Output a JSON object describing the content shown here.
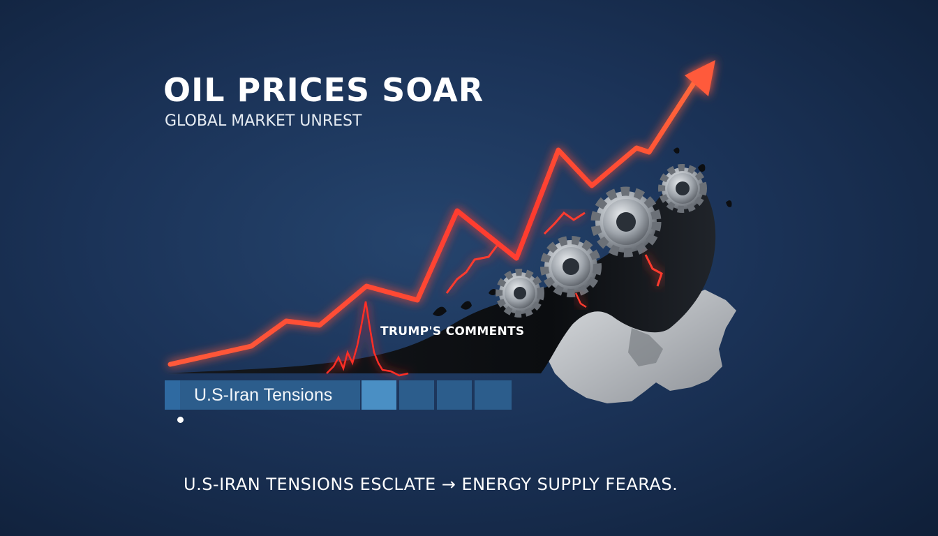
{
  "headline": "OIL PRICES SOAR",
  "subheadline": "GLOBAL MARKET UNREST",
  "annotation": "TRUMP'S COMMENTS",
  "tension_bar_label": "U.S-Iran Tensions",
  "footer": "U.S-IRAN TENSIONS ESCLATE → ENERGY SUPPLY FEARAS.",
  "icons": [
    "trend-arrow",
    "gear-icon",
    "oil-splash",
    "world-map",
    "lightning-icon"
  ],
  "colors": {
    "background": "#1b3358",
    "trend_line": "#ff4a36",
    "bar_primary": "#2c5d8c",
    "bar_highlight": "#4a8fc4",
    "gear": "#a9aeb4",
    "oil": "#0d0f13"
  }
}
